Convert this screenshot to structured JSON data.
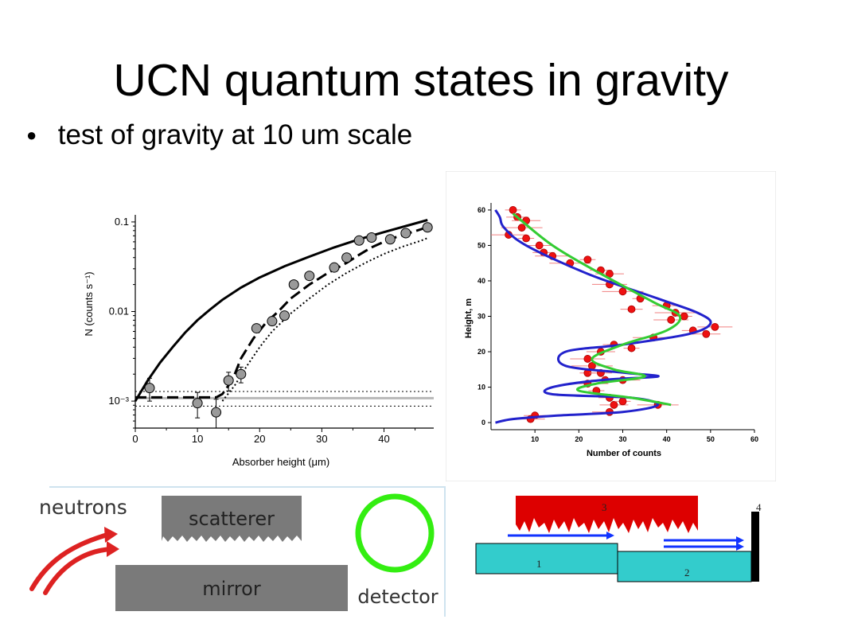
{
  "slide": {
    "title": "UCN quantum states in gravity",
    "bullets": [
      {
        "symbol": "●",
        "text": "test of gravity at 10 um scale"
      }
    ]
  },
  "chart_data": [
    {
      "type": "line",
      "title": "",
      "xlabel": "Absorber height (μm)",
      "ylabel": "N (counts s⁻¹)",
      "yscale": "log",
      "xlim": [
        0,
        48
      ],
      "ylim": [
        0.0005,
        0.12
      ],
      "xticks": [
        "0",
        "10",
        "20",
        "30",
        "40"
      ],
      "yticks": [
        {
          "value": 0.1,
          "label": "0.1"
        },
        {
          "value": 0.01,
          "label": "0.01"
        },
        {
          "value": 0.001,
          "label": "10⁻³"
        }
      ],
      "series": [
        {
          "style": "solid",
          "x": [
            0,
            2,
            4,
            6,
            8,
            10,
            12,
            14,
            17,
            20,
            24,
            28,
            32,
            36,
            40,
            44,
            47
          ],
          "y": [
            0.001,
            0.0017,
            0.0027,
            0.004,
            0.0058,
            0.008,
            0.0105,
            0.0135,
            0.0185,
            0.024,
            0.032,
            0.041,
            0.052,
            0.064,
            0.077,
            0.092,
            0.105
          ]
        },
        {
          "style": "dashed",
          "x": [
            0,
            10,
            13,
            14,
            15,
            16,
            17,
            19,
            21,
            23,
            25,
            28,
            31,
            34,
            36,
            38,
            40,
            42,
            44,
            46,
            47
          ],
          "y": [
            0.0011,
            0.0011,
            0.0011,
            0.0012,
            0.0015,
            0.002,
            0.003,
            0.005,
            0.0075,
            0.01,
            0.014,
            0.02,
            0.027,
            0.035,
            0.043,
            0.052,
            0.06,
            0.068,
            0.075,
            0.083,
            0.088
          ]
        },
        {
          "style": "dotted",
          "x": [
            14,
            16,
            18,
            20,
            22,
            25,
            28,
            31,
            34,
            37,
            40,
            43,
            46,
            47
          ],
          "y": [
            0.001,
            0.0015,
            0.0025,
            0.004,
            0.006,
            0.0095,
            0.014,
            0.02,
            0.027,
            0.035,
            0.044,
            0.053,
            0.062,
            0.066
          ]
        }
      ],
      "points": [
        {
          "x": 2.3,
          "y": 0.0014,
          "err": 0.0004
        },
        {
          "x": 10,
          "y": 0.00095,
          "err": 0.0003
        },
        {
          "x": 13,
          "y": 0.00075,
          "err": 0.0003
        },
        {
          "x": 15,
          "y": 0.0017,
          "err": 0.0004
        },
        {
          "x": 17,
          "y": 0.002,
          "err": 0.0004
        },
        {
          "x": 19.5,
          "y": 0.0065
        },
        {
          "x": 22,
          "y": 0.0078
        },
        {
          "x": 24,
          "y": 0.009
        },
        {
          "x": 25.5,
          "y": 0.02
        },
        {
          "x": 28,
          "y": 0.025
        },
        {
          "x": 32,
          "y": 0.031
        },
        {
          "x": 34,
          "y": 0.04
        },
        {
          "x": 36,
          "y": 0.062
        },
        {
          "x": 38,
          "y": 0.067
        },
        {
          "x": 41,
          "y": 0.064
        },
        {
          "x": 43.5,
          "y": 0.075
        },
        {
          "x": 47,
          "y": 0.087
        }
      ],
      "reference_lines": [
        {
          "y": 0.00128,
          "style": "dotted"
        },
        {
          "y": 0.00108,
          "style": "solid-gray"
        },
        {
          "y": 0.00088,
          "style": "dotted"
        }
      ]
    },
    {
      "type": "line",
      "title": "",
      "xlabel": "Number of counts",
      "ylabel": "Height,  m",
      "xlim": [
        0,
        60
      ],
      "ylim": [
        -2,
        62
      ],
      "xticks": [
        "10",
        "20",
        "30",
        "40",
        "50",
        "60"
      ],
      "yticks": [
        "0",
        "10",
        "20",
        "30",
        "40",
        "50",
        "60"
      ],
      "series": [
        {
          "color": "#2222cc",
          "x": [
            1,
            5,
            15,
            30,
            38,
            32,
            14,
            14,
            25,
            38,
            31,
            17,
            17,
            30,
            45,
            50,
            47,
            38,
            22,
            8,
            3,
            2,
            1
          ],
          "y": [
            0,
            1,
            2,
            3,
            5,
            7,
            8,
            10,
            12,
            13,
            14,
            16,
            20,
            22,
            25,
            28,
            31,
            35,
            42,
            50,
            55,
            58,
            60
          ]
        },
        {
          "color": "#33cc33",
          "x": [
            41,
            32,
            20,
            24,
            35,
            28,
            23,
            30,
            40,
            43,
            37,
            25,
            14,
            5
          ],
          "y": [
            5,
            7,
            9,
            11,
            13,
            15,
            18,
            22,
            26,
            30,
            34,
            42,
            50,
            59
          ]
        }
      ],
      "points": [
        {
          "x": 5,
          "y": 60
        },
        {
          "x": 6,
          "y": 58
        },
        {
          "x": 8,
          "y": 57
        },
        {
          "x": 4,
          "y": 53
        },
        {
          "x": 7,
          "y": 55
        },
        {
          "x": 8,
          "y": 52
        },
        {
          "x": 12,
          "y": 48
        },
        {
          "x": 11,
          "y": 50
        },
        {
          "x": 14,
          "y": 47
        },
        {
          "x": 18,
          "y": 45
        },
        {
          "x": 22,
          "y": 46
        },
        {
          "x": 25,
          "y": 43
        },
        {
          "x": 27,
          "y": 42
        },
        {
          "x": 27,
          "y": 39
        },
        {
          "x": 30,
          "y": 37
        },
        {
          "x": 34,
          "y": 35
        },
        {
          "x": 32,
          "y": 32
        },
        {
          "x": 40,
          "y": 33
        },
        {
          "x": 41,
          "y": 29
        },
        {
          "x": 42,
          "y": 31
        },
        {
          "x": 44,
          "y": 30
        },
        {
          "x": 46,
          "y": 26
        },
        {
          "x": 49,
          "y": 25
        },
        {
          "x": 51,
          "y": 27
        },
        {
          "x": 37,
          "y": 24
        },
        {
          "x": 32,
          "y": 21
        },
        {
          "x": 28,
          "y": 22
        },
        {
          "x": 25,
          "y": 20
        },
        {
          "x": 22,
          "y": 18
        },
        {
          "x": 23,
          "y": 16
        },
        {
          "x": 22,
          "y": 14
        },
        {
          "x": 25,
          "y": 14
        },
        {
          "x": 26,
          "y": 12
        },
        {
          "x": 30,
          "y": 12
        },
        {
          "x": 22,
          "y": 11
        },
        {
          "x": 24,
          "y": 9
        },
        {
          "x": 27,
          "y": 7
        },
        {
          "x": 28,
          "y": 5
        },
        {
          "x": 27,
          "y": 3
        },
        {
          "x": 38,
          "y": 5
        },
        {
          "x": 30,
          "y": 6
        },
        {
          "x": 10,
          "y": 2
        },
        {
          "x": 9,
          "y": 1
        }
      ]
    }
  ],
  "diagrams": {
    "left": {
      "neutrons_label": "neutrons",
      "scatterer_label": "scatterer",
      "mirror_label": "mirror",
      "detector_label": "detector",
      "colors": {
        "block": "#7a7a7a",
        "detector": "#33ee11",
        "arrow": "#dd2222"
      }
    },
    "right": {
      "label_1": "1",
      "label_2": "2",
      "label_3": "3",
      "label_4": "4",
      "colors": {
        "block": "#33cccc",
        "scatterer": "#dd0000",
        "arrow": "#1133ff",
        "absorber": "#000000"
      }
    }
  }
}
